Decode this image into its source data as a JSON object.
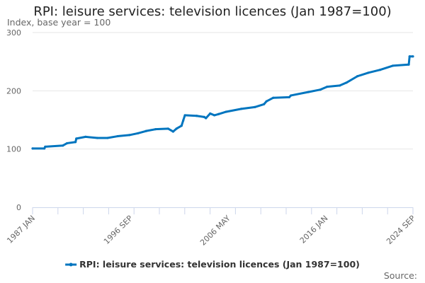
{
  "chart_data": {
    "type": "line",
    "title": "RPI: leisure services: television licences (Jan 1987=100)",
    "ylabel": "Index, base year = 100",
    "xlabel": "",
    "ylim": [
      0,
      300
    ],
    "yticks": [
      "0",
      "100",
      "200",
      "300"
    ],
    "xlim": [
      "1987-01",
      "2024-09"
    ],
    "xticks": [
      {
        "date": "1987-01",
        "label": "1987 JAN"
      },
      {
        "date": "1996-09",
        "label": "1996 SEP"
      },
      {
        "date": "2006-05",
        "label": "2006 MAY"
      },
      {
        "date": "2016-01",
        "label": "2016 JAN"
      },
      {
        "date": "2024-09",
        "label": "2024 SEP"
      }
    ],
    "grid": true,
    "legend_position": "bottom",
    "source_label": "Source:",
    "series": [
      {
        "name": "RPI: leisure services: television licences (Jan 1987=100)",
        "color": "#0075bf",
        "points": [
          [
            "1987-01",
            101
          ],
          [
            "1988-03",
            101
          ],
          [
            "1988-04",
            104
          ],
          [
            "1990-01",
            106
          ],
          [
            "1990-06",
            110
          ],
          [
            "1991-04",
            112
          ],
          [
            "1991-05",
            118
          ],
          [
            "1992-04",
            121
          ],
          [
            "1993-06",
            119
          ],
          [
            "1994-06",
            119
          ],
          [
            "1995-06",
            122
          ],
          [
            "1996-08",
            124
          ],
          [
            "1997-06",
            127
          ],
          [
            "1998-04",
            131
          ],
          [
            "1999-03",
            134
          ],
          [
            "2000-06",
            135
          ],
          [
            "2000-12",
            130
          ],
          [
            "2001-04",
            135
          ],
          [
            "2001-10",
            140
          ],
          [
            "2001-12",
            149
          ],
          [
            "2002-02",
            158
          ],
          [
            "2003-04",
            157
          ],
          [
            "2004-01",
            155
          ],
          [
            "2004-03",
            153
          ],
          [
            "2004-08",
            161
          ],
          [
            "2005-01",
            158
          ],
          [
            "2005-06",
            160
          ],
          [
            "2006-03",
            164
          ],
          [
            "2007-09",
            169
          ],
          [
            "2009-01",
            172
          ],
          [
            "2009-12",
            177
          ],
          [
            "2010-03",
            182
          ],
          [
            "2010-11",
            188
          ],
          [
            "2012-06",
            189
          ],
          [
            "2012-08",
            192
          ],
          [
            "2014-05",
            198
          ],
          [
            "2015-07",
            202
          ],
          [
            "2016-03",
            207
          ],
          [
            "2017-06",
            209
          ],
          [
            "2018-02",
            214
          ],
          [
            "2019-03",
            225
          ],
          [
            "2020-04",
            231
          ],
          [
            "2021-06",
            236
          ],
          [
            "2022-09",
            243
          ],
          [
            "2024-04",
            245
          ],
          [
            "2024-05",
            259
          ],
          [
            "2024-09",
            259
          ]
        ]
      }
    ]
  }
}
